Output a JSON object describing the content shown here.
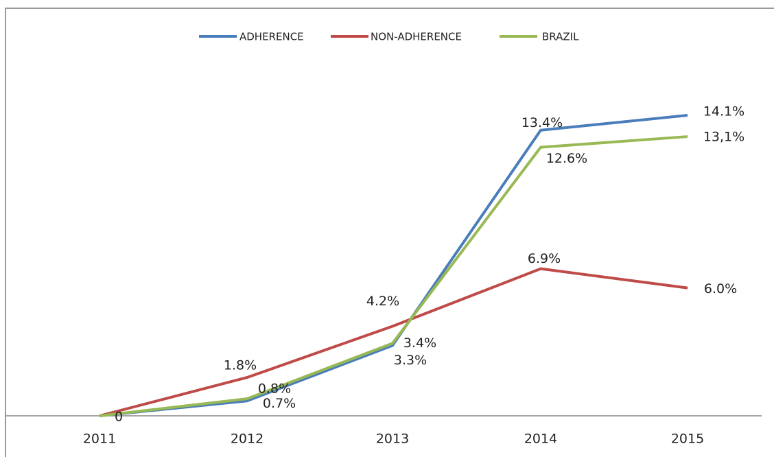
{
  "chart_data": {
    "type": "line",
    "categories": [
      "2011",
      "2012",
      "2013",
      "2014",
      "2015"
    ],
    "series": [
      {
        "name": "ADHERENCE",
        "color": "#4a7ebb",
        "values": [
          0,
          0.7,
          3.3,
          13.4,
          14.1
        ],
        "value_labels": [
          "0",
          "0.7%",
          "3.3%",
          "13.4%",
          "14.1%"
        ]
      },
      {
        "name": "NON-ADHERENCE",
        "color": "#be4b48",
        "values": [
          0,
          1.8,
          4.2,
          6.9,
          6.0
        ],
        "value_labels": [
          null,
          "1.8%",
          "4.2%",
          "6.9%",
          "6.0%"
        ]
      },
      {
        "name": "BRAZIL",
        "color": "#98b954",
        "values": [
          0,
          0.8,
          3.4,
          12.6,
          13.1
        ],
        "value_labels": [
          null,
          "0.8%",
          "3.4%",
          "12.6%",
          "13,1%"
        ]
      }
    ],
    "legend": "top"
  }
}
